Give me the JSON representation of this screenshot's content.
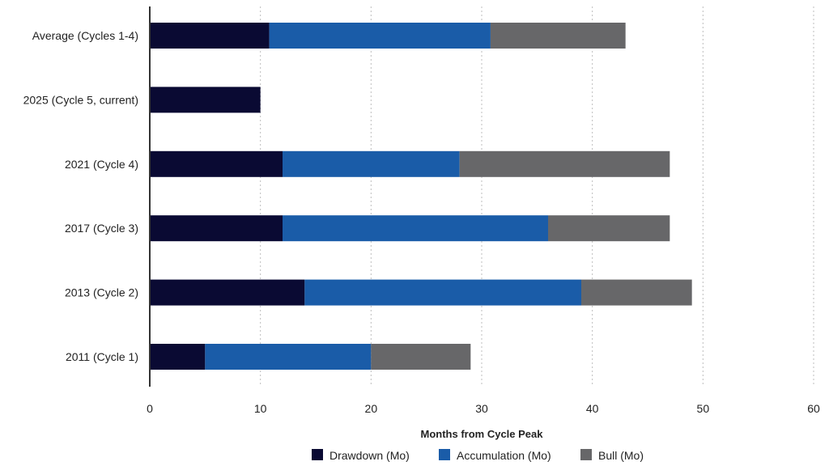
{
  "chart_data": {
    "type": "bar",
    "orientation": "horizontal",
    "stacked": true,
    "categories": [
      "Average (Cycles 1-4)",
      "2025 (Cycle 5, current)",
      "2021 (Cycle 4)",
      "2017 (Cycle 3)",
      "2013 (Cycle 2)",
      "2011 (Cycle 1)"
    ],
    "series": [
      {
        "name": "Drawdown (Mo)",
        "color": "#0a0a33",
        "values": [
          10.8,
          10,
          12,
          12,
          14,
          5
        ]
      },
      {
        "name": "Accumulation (Mo)",
        "color": "#1a5ca8",
        "values": [
          20,
          0,
          16,
          24,
          25,
          15
        ]
      },
      {
        "name": "Bull (Mo)",
        "color": "#676769",
        "values": [
          12.2,
          0,
          19,
          11,
          10,
          9
        ]
      }
    ],
    "xlabel": "Months from Cycle Peak",
    "xlim": [
      0,
      60
    ],
    "xticks": [
      0,
      10,
      20,
      30,
      40,
      50,
      60
    ],
    "grid": "vertical dotted",
    "legend_position": "bottom"
  }
}
